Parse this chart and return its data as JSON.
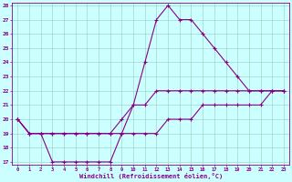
{
  "line1_x": [
    0,
    1,
    2,
    3,
    4,
    5,
    6,
    7,
    8,
    9,
    10,
    11,
    12,
    13,
    14,
    15,
    16,
    17,
    18,
    19,
    20,
    21,
    22,
    23
  ],
  "line1_y": [
    20,
    19,
    19,
    17,
    17,
    17,
    17,
    17,
    17,
    19,
    21,
    24,
    27,
    28,
    27,
    27,
    26,
    25,
    24,
    23,
    22,
    22,
    22,
    22
  ],
  "line2_x": [
    0,
    1,
    2,
    3,
    4,
    5,
    6,
    7,
    8,
    9,
    10,
    11,
    12,
    13,
    14,
    15,
    16,
    17,
    18,
    19,
    20,
    21,
    22,
    23
  ],
  "line2_y": [
    20,
    19,
    19,
    19,
    19,
    19,
    19,
    19,
    19,
    20,
    21,
    21,
    22,
    22,
    22,
    22,
    22,
    22,
    22,
    22,
    22,
    22,
    22,
    22
  ],
  "line3_x": [
    0,
    1,
    2,
    3,
    4,
    5,
    6,
    7,
    8,
    9,
    10,
    11,
    12,
    13,
    14,
    15,
    16,
    17,
    18,
    19,
    20,
    21,
    22,
    23
  ],
  "line3_y": [
    20,
    19,
    19,
    19,
    19,
    19,
    19,
    19,
    19,
    19,
    19,
    19,
    19,
    20,
    20,
    20,
    21,
    21,
    21,
    21,
    21,
    21,
    22,
    22
  ],
  "line_color": "#880088",
  "bg_color": "#ccffff",
  "grid_color": "#99ccbb",
  "xlabel": "Windchill (Refroidissement éolien,°C)",
  "ylim_min": 17,
  "ylim_max": 28,
  "xlim_min": 0,
  "xlim_max": 23,
  "yticks": [
    17,
    18,
    19,
    20,
    21,
    22,
    23,
    24,
    25,
    26,
    27,
    28
  ],
  "xticks": [
    0,
    1,
    2,
    3,
    4,
    5,
    6,
    7,
    8,
    9,
    10,
    11,
    12,
    13,
    14,
    15,
    16,
    17,
    18,
    19,
    20,
    21,
    22,
    23
  ],
  "marker": "+"
}
